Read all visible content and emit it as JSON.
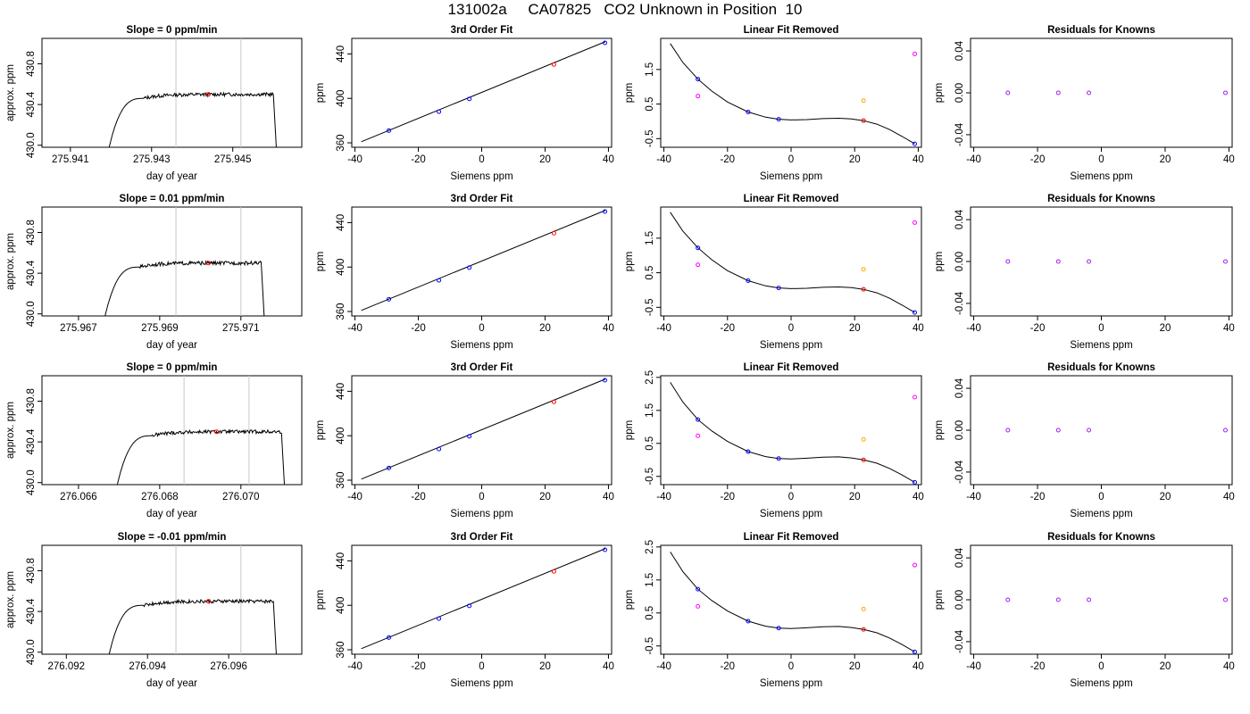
{
  "page": {
    "title": "131002a     CA07825   CO2 Unknown in Position  10"
  },
  "colors": {
    "axis": "#000000",
    "line": "#000000",
    "marker_line": "#c8c8c8",
    "known": "#0000ff",
    "unknown": "#ff0000",
    "unknown_raw": "#ffa500",
    "known_raw": "#ff00ff",
    "residual_known": "#a020f0"
  },
  "chart_data": [
    {
      "row": 0,
      "type": "line",
      "title": "Slope =  0  ppm/min",
      "xlabel": "day of year",
      "ylabel": "approx. ppm",
      "xlim": [
        275.9403,
        275.9467
      ],
      "ylim": [
        429.98,
        431.05
      ],
      "xticks": [
        "275.941",
        "275.943",
        "275.945"
      ],
      "yticks": [
        "430.0",
        "430.4",
        "430.8"
      ],
      "vlines": [
        275.9436,
        275.9452
      ],
      "trace": {
        "start": 275.9419,
        "rise_end": 275.9428,
        "plateau_end": 275.946,
        "end": 275.9461,
        "plateau": 430.5
      },
      "point": {
        "x": 275.9444,
        "y": 430.5
      }
    },
    {
      "row": 0,
      "type": "line",
      "title": "3rd Order Fit",
      "xlabel": "Siemens ppm",
      "ylabel": "ppm",
      "xlim": [
        -41,
        41
      ],
      "ylim": [
        356,
        454
      ],
      "xticks": [
        "-40",
        "-20",
        "0",
        "20",
        "40"
      ],
      "yticks": [
        "360",
        "400",
        "440"
      ],
      "fit_line": [
        [
          -38,
          361
        ],
        [
          39,
          451
        ]
      ],
      "points": [
        {
          "x": -29.3,
          "y": 371,
          "kind": "known"
        },
        {
          "x": -13.5,
          "y": 388,
          "kind": "known"
        },
        {
          "x": -3.9,
          "y": 399.5,
          "kind": "known"
        },
        {
          "x": 22.8,
          "y": 430.5,
          "kind": "unknown"
        },
        {
          "x": 38.9,
          "y": 450,
          "kind": "known"
        }
      ]
    },
    {
      "row": 0,
      "type": "scatter",
      "title": "Linear Fit Removed",
      "xlabel": "Siemens ppm",
      "ylabel": "ppm",
      "xlim": [
        -41,
        41
      ],
      "ylim": [
        -0.75,
        2.4
      ],
      "xticks": [
        "-40",
        "-20",
        "0",
        "20",
        "40"
      ],
      "yticks": [
        "-0.5",
        "0.5",
        "1.5"
      ],
      "curve": [
        [
          -38,
          2.25
        ],
        [
          -34,
          1.7
        ],
        [
          -29.3,
          1.22
        ],
        [
          -25,
          0.88
        ],
        [
          -20,
          0.56
        ],
        [
          -13.5,
          0.27
        ],
        [
          -8,
          0.12
        ],
        [
          -3.9,
          0.06
        ],
        [
          0,
          0.04
        ],
        [
          5,
          0.05
        ],
        [
          10,
          0.08
        ],
        [
          15,
          0.09
        ],
        [
          19,
          0.07
        ],
        [
          22.8,
          0.02
        ],
        [
          27,
          -0.08
        ],
        [
          31,
          -0.24
        ],
        [
          35,
          -0.44
        ],
        [
          38.9,
          -0.65
        ]
      ],
      "points": [
        {
          "x": -29.3,
          "y": 1.22,
          "kind": "known"
        },
        {
          "x": -13.5,
          "y": 0.27,
          "kind": "known"
        },
        {
          "x": -3.9,
          "y": 0.06,
          "kind": "known"
        },
        {
          "x": 22.8,
          "y": 0.02,
          "kind": "unknown"
        },
        {
          "x": 38.9,
          "y": -0.65,
          "kind": "known"
        },
        {
          "x": -29.3,
          "y": 0.73,
          "kind": "known_raw"
        },
        {
          "x": 22.8,
          "y": 0.6,
          "kind": "unknown_raw"
        },
        {
          "x": 38.9,
          "y": 1.95,
          "kind": "known_raw"
        }
      ]
    },
    {
      "row": 0,
      "type": "scatter",
      "title": "Residuals for Knowns",
      "xlabel": "Siemens ppm",
      "ylabel": "ppm",
      "xlim": [
        -41,
        41
      ],
      "ylim": [
        -0.052,
        0.052
      ],
      "xticks": [
        "-40",
        "-20",
        "0",
        "20",
        "40"
      ],
      "yticks": [
        "-0.04",
        "0.00",
        "0.04"
      ],
      "points": [
        {
          "x": -29.3,
          "y": 0
        },
        {
          "x": -13.5,
          "y": 0
        },
        {
          "x": -3.9,
          "y": 0
        },
        {
          "x": 38.9,
          "y": 0
        }
      ]
    },
    {
      "row": 1,
      "type": "line",
      "title": "Slope =  0.01  ppm/min",
      "xlabel": "day of year",
      "ylabel": "approx. ppm",
      "xlim": [
        275.9661,
        275.9725
      ],
      "ylim": [
        429.98,
        431.05
      ],
      "xticks": [
        "275.967",
        "275.969",
        "275.971"
      ],
      "yticks": [
        "430.0",
        "430.4",
        "430.8"
      ],
      "vlines": [
        275.9694,
        275.971
      ],
      "trace": {
        "start": 275.9676,
        "rise_end": 275.9685,
        "plateau_end": 275.9715,
        "end": 275.9716,
        "plateau": 430.5
      },
      "point": {
        "x": 275.9702,
        "y": 430.5
      }
    },
    {
      "row": 1,
      "type": "line",
      "title": "3rd Order Fit",
      "xlabel": "Siemens ppm",
      "ylabel": "ppm",
      "xlim": [
        -41,
        41
      ],
      "ylim": [
        356,
        454
      ],
      "xticks": [
        "-40",
        "-20",
        "0",
        "20",
        "40"
      ],
      "yticks": [
        "360",
        "400",
        "440"
      ],
      "fit_line": [
        [
          -38,
          361
        ],
        [
          39,
          451
        ]
      ],
      "points": [
        {
          "x": -29.3,
          "y": 371,
          "kind": "known"
        },
        {
          "x": -13.5,
          "y": 388,
          "kind": "known"
        },
        {
          "x": -3.9,
          "y": 399.5,
          "kind": "known"
        },
        {
          "x": 22.8,
          "y": 430.5,
          "kind": "unknown"
        },
        {
          "x": 38.9,
          "y": 450,
          "kind": "known"
        }
      ]
    },
    {
      "row": 1,
      "type": "scatter",
      "title": "Linear Fit Removed",
      "xlabel": "Siemens ppm",
      "ylabel": "ppm",
      "xlim": [
        -41,
        41
      ],
      "ylim": [
        -0.75,
        2.4
      ],
      "xticks": [
        "-40",
        "-20",
        "0",
        "20",
        "40"
      ],
      "yticks": [
        "-0.5",
        "0.5",
        "1.5"
      ],
      "curve": [
        [
          -38,
          2.25
        ],
        [
          -34,
          1.7
        ],
        [
          -29.3,
          1.22
        ],
        [
          -25,
          0.88
        ],
        [
          -20,
          0.56
        ],
        [
          -13.5,
          0.27
        ],
        [
          -8,
          0.12
        ],
        [
          -3.9,
          0.06
        ],
        [
          0,
          0.04
        ],
        [
          5,
          0.05
        ],
        [
          10,
          0.08
        ],
        [
          15,
          0.09
        ],
        [
          19,
          0.07
        ],
        [
          22.8,
          0.02
        ],
        [
          27,
          -0.08
        ],
        [
          31,
          -0.24
        ],
        [
          35,
          -0.44
        ],
        [
          38.9,
          -0.65
        ]
      ],
      "points": [
        {
          "x": -29.3,
          "y": 1.22,
          "kind": "known"
        },
        {
          "x": -13.5,
          "y": 0.27,
          "kind": "known"
        },
        {
          "x": -3.9,
          "y": 0.06,
          "kind": "known"
        },
        {
          "x": 22.8,
          "y": 0.02,
          "kind": "unknown"
        },
        {
          "x": 38.9,
          "y": -0.65,
          "kind": "known"
        },
        {
          "x": -29.3,
          "y": 0.73,
          "kind": "known_raw"
        },
        {
          "x": 22.8,
          "y": 0.6,
          "kind": "unknown_raw"
        },
        {
          "x": 38.9,
          "y": 1.95,
          "kind": "known_raw"
        }
      ]
    },
    {
      "row": 1,
      "type": "scatter",
      "title": "Residuals for Knowns",
      "xlabel": "Siemens ppm",
      "ylabel": "ppm",
      "xlim": [
        -41,
        41
      ],
      "ylim": [
        -0.052,
        0.052
      ],
      "xticks": [
        "-40",
        "-20",
        "0",
        "20",
        "40"
      ],
      "yticks": [
        "-0.04",
        "0.00",
        "0.04"
      ],
      "points": [
        {
          "x": -29.3,
          "y": 0
        },
        {
          "x": -13.5,
          "y": 0
        },
        {
          "x": -3.9,
          "y": 0
        },
        {
          "x": 38.9,
          "y": 0
        }
      ]
    },
    {
      "row": 2,
      "type": "line",
      "title": "Slope =  0  ppm/min",
      "xlabel": "day of year",
      "ylabel": "approx. ppm",
      "xlim": [
        276.0651,
        276.0715
      ],
      "ylim": [
        429.98,
        431.05
      ],
      "xticks": [
        "276.066",
        "276.068",
        "276.070"
      ],
      "yticks": [
        "430.0",
        "430.4",
        "430.8"
      ],
      "vlines": [
        276.0686,
        276.0702
      ],
      "trace": {
        "start": 276.0669,
        "rise_end": 276.0678,
        "plateau_end": 276.071,
        "end": 276.0711,
        "plateau": 430.5
      },
      "point": {
        "x": 276.0694,
        "y": 430.5
      }
    },
    {
      "row": 2,
      "type": "line",
      "title": "3rd Order Fit",
      "xlabel": "Siemens ppm",
      "ylabel": "ppm",
      "xlim": [
        -41,
        41
      ],
      "ylim": [
        356,
        454
      ],
      "xticks": [
        "-40",
        "-20",
        "0",
        "20",
        "40"
      ],
      "yticks": [
        "360",
        "400",
        "440"
      ],
      "fit_line": [
        [
          -38,
          361
        ],
        [
          39,
          451
        ]
      ],
      "points": [
        {
          "x": -29.3,
          "y": 371,
          "kind": "known"
        },
        {
          "x": -13.5,
          "y": 388,
          "kind": "known"
        },
        {
          "x": -3.9,
          "y": 399.5,
          "kind": "known"
        },
        {
          "x": 22.8,
          "y": 430.5,
          "kind": "unknown"
        },
        {
          "x": 38.9,
          "y": 450,
          "kind": "known"
        }
      ]
    },
    {
      "row": 2,
      "type": "scatter",
      "title": "Linear Fit Removed",
      "xlabel": "Siemens ppm",
      "ylabel": "ppm",
      "xlim": [
        -41,
        41
      ],
      "ylim": [
        -0.75,
        2.55
      ],
      "xticks": [
        "-40",
        "-20",
        "0",
        "20",
        "40"
      ],
      "yticks": [
        "-0.5",
        "0.5",
        "1.5",
        "2.5"
      ],
      "curve": [
        [
          -38,
          2.35
        ],
        [
          -34,
          1.75
        ],
        [
          -29.3,
          1.22
        ],
        [
          -25,
          0.88
        ],
        [
          -20,
          0.56
        ],
        [
          -13.5,
          0.25
        ],
        [
          -8,
          0.1
        ],
        [
          -3.9,
          0.04
        ],
        [
          0,
          0.03
        ],
        [
          5,
          0.05
        ],
        [
          10,
          0.08
        ],
        [
          15,
          0.09
        ],
        [
          19,
          0.06
        ],
        [
          22.8,
          0.0
        ],
        [
          27,
          -0.1
        ],
        [
          31,
          -0.26
        ],
        [
          35,
          -0.46
        ],
        [
          38.9,
          -0.68
        ]
      ],
      "points": [
        {
          "x": -29.3,
          "y": 1.22,
          "kind": "known"
        },
        {
          "x": -13.5,
          "y": 0.25,
          "kind": "known"
        },
        {
          "x": -3.9,
          "y": 0.04,
          "kind": "known"
        },
        {
          "x": 22.8,
          "y": 0.0,
          "kind": "unknown"
        },
        {
          "x": 38.9,
          "y": -0.68,
          "kind": "known"
        },
        {
          "x": -29.3,
          "y": 0.73,
          "kind": "known_raw"
        },
        {
          "x": 22.8,
          "y": 0.62,
          "kind": "unknown_raw"
        },
        {
          "x": 38.9,
          "y": 1.9,
          "kind": "known_raw"
        }
      ]
    },
    {
      "row": 2,
      "type": "scatter",
      "title": "Residuals for Knowns",
      "xlabel": "Siemens ppm",
      "ylabel": "ppm",
      "xlim": [
        -41,
        41
      ],
      "ylim": [
        -0.052,
        0.052
      ],
      "xticks": [
        "-40",
        "-20",
        "0",
        "20",
        "40"
      ],
      "yticks": [
        "-0.04",
        "0.00",
        "0.04"
      ],
      "points": [
        {
          "x": -29.3,
          "y": 0
        },
        {
          "x": -13.5,
          "y": 0
        },
        {
          "x": -3.9,
          "y": 0
        },
        {
          "x": 38.9,
          "y": 0
        }
      ]
    },
    {
      "row": 3,
      "type": "line",
      "title": "Slope =  -0.01  ppm/min",
      "xlabel": "day of year",
      "ylabel": "approx. ppm",
      "xlim": [
        276.0914,
        276.0978
      ],
      "ylim": [
        429.98,
        431.05
      ],
      "xticks": [
        "276.092",
        "276.094",
        "276.096"
      ],
      "yticks": [
        "430.0",
        "430.4",
        "430.8"
      ],
      "vlines": [
        276.0947,
        276.0963
      ],
      "trace": {
        "start": 276.093,
        "rise_end": 276.0939,
        "plateau_end": 276.0971,
        "end": 276.0972,
        "plateau": 430.5
      },
      "point": {
        "x": 276.0955,
        "y": 430.5
      }
    },
    {
      "row": 3,
      "type": "line",
      "title": "3rd Order Fit",
      "xlabel": "Siemens ppm",
      "ylabel": "ppm",
      "xlim": [
        -41,
        41
      ],
      "ylim": [
        356,
        454
      ],
      "xticks": [
        "-40",
        "-20",
        "0",
        "20",
        "40"
      ],
      "yticks": [
        "360",
        "400",
        "440"
      ],
      "fit_line": [
        [
          -38,
          361
        ],
        [
          39,
          451
        ]
      ],
      "points": [
        {
          "x": -29.3,
          "y": 371,
          "kind": "known"
        },
        {
          "x": -13.5,
          "y": 388,
          "kind": "known"
        },
        {
          "x": -3.9,
          "y": 399.5,
          "kind": "known"
        },
        {
          "x": 22.8,
          "y": 430.5,
          "kind": "unknown"
        },
        {
          "x": 38.9,
          "y": 450,
          "kind": "known"
        }
      ]
    },
    {
      "row": 3,
      "type": "scatter",
      "title": "Linear Fit Removed",
      "xlabel": "Siemens ppm",
      "ylabel": "ppm",
      "xlim": [
        -41,
        41
      ],
      "ylim": [
        -0.75,
        2.55
      ],
      "xticks": [
        "-40",
        "-20",
        "0",
        "20",
        "40"
      ],
      "yticks": [
        "-0.5",
        "0.5",
        "1.5",
        "2.5"
      ],
      "curve": [
        [
          -38,
          2.35
        ],
        [
          -34,
          1.75
        ],
        [
          -29.3,
          1.22
        ],
        [
          -25,
          0.88
        ],
        [
          -20,
          0.56
        ],
        [
          -13.5,
          0.25
        ],
        [
          -8,
          0.1
        ],
        [
          -3.9,
          0.04
        ],
        [
          0,
          0.03
        ],
        [
          5,
          0.05
        ],
        [
          10,
          0.08
        ],
        [
          15,
          0.09
        ],
        [
          19,
          0.06
        ],
        [
          22.8,
          0.0
        ],
        [
          27,
          -0.1
        ],
        [
          31,
          -0.26
        ],
        [
          35,
          -0.46
        ],
        [
          38.9,
          -0.68
        ]
      ],
      "points": [
        {
          "x": -29.3,
          "y": 1.22,
          "kind": "known"
        },
        {
          "x": -13.5,
          "y": 0.25,
          "kind": "known"
        },
        {
          "x": -3.9,
          "y": 0.04,
          "kind": "known"
        },
        {
          "x": 22.8,
          "y": 0.0,
          "kind": "unknown"
        },
        {
          "x": 38.9,
          "y": -0.68,
          "kind": "known"
        },
        {
          "x": -29.3,
          "y": 0.7,
          "kind": "known_raw"
        },
        {
          "x": 22.8,
          "y": 0.62,
          "kind": "unknown_raw"
        },
        {
          "x": 38.9,
          "y": 1.95,
          "kind": "known_raw"
        }
      ]
    },
    {
      "row": 3,
      "type": "scatter",
      "title": "Residuals for Knowns",
      "xlabel": "Siemens ppm",
      "ylabel": "ppm",
      "xlim": [
        -41,
        41
      ],
      "ylim": [
        -0.052,
        0.052
      ],
      "xticks": [
        "-40",
        "-20",
        "0",
        "20",
        "40"
      ],
      "yticks": [
        "-0.04",
        "0.00",
        "0.04"
      ],
      "points": [
        {
          "x": -29.3,
          "y": 0
        },
        {
          "x": -13.5,
          "y": 0
        },
        {
          "x": -3.9,
          "y": 0
        },
        {
          "x": 38.9,
          "y": 0
        }
      ]
    }
  ]
}
